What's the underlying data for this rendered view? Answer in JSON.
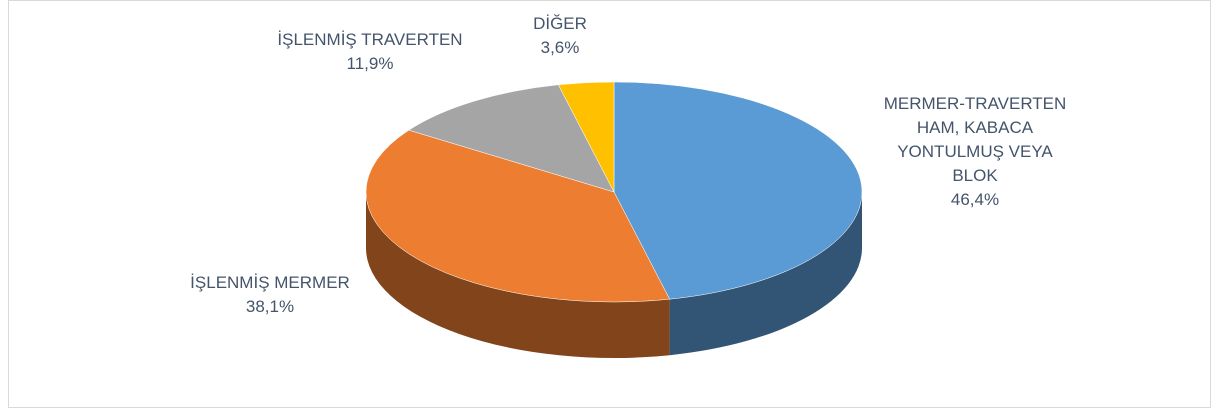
{
  "chart_data": {
    "type": "pie3d",
    "categories": [
      "MERMER-TRAVERTEN HAM, KABACA YONTULMUŞ VEYA BLOK",
      "İŞLENMİŞ MERMER",
      "İŞLENMİŞ TRAVERTEN",
      "DİĞER"
    ],
    "values": [
      46.4,
      38.1,
      11.9,
      3.6
    ],
    "value_labels": [
      "46,4%",
      "38,1%",
      "11,9%",
      "3,6%"
    ],
    "colors": [
      "#5b9bd5",
      "#ed7d31",
      "#a5a5a5",
      "#ffc000"
    ]
  }
}
